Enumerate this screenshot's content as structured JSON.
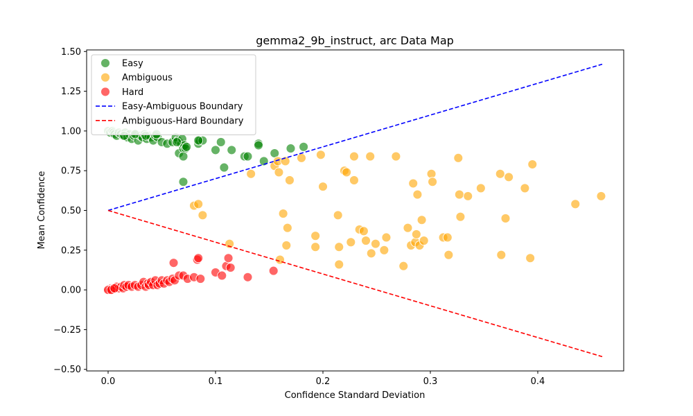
{
  "chart_data": {
    "type": "scatter",
    "title": "gemma2_9b_instruct, arc Data Map",
    "xlabel": "Confidence Standard Deviation",
    "ylabel": "Mean Confidence",
    "xlim": [
      -0.02,
      0.48
    ],
    "ylim": [
      -0.51,
      1.51
    ],
    "xticks": [
      0.0,
      0.1,
      0.2,
      0.3,
      0.4
    ],
    "xtick_labels": [
      "0.0",
      "0.1",
      "0.2",
      "0.3",
      "0.4"
    ],
    "yticks": [
      -0.5,
      -0.25,
      0.0,
      0.25,
      0.5,
      0.75,
      1.0,
      1.25,
      1.5
    ],
    "ytick_labels": [
      "−0.50",
      "−0.25",
      "0.00",
      "0.25",
      "0.50",
      "0.75",
      "1.00",
      "1.25",
      "1.50"
    ],
    "grid": false,
    "legend_position": "top-left",
    "legend": [
      {
        "label": "Easy",
        "kind": "marker",
        "color": "#008000"
      },
      {
        "label": "Ambiguous",
        "kind": "marker",
        "color": "#FFA500"
      },
      {
        "label": "Hard",
        "kind": "marker",
        "color": "#FF0000"
      },
      {
        "label": "Easy-Ambiguous Boundary",
        "kind": "line",
        "color": "#0000FF"
      },
      {
        "label": "Ambiguous-Hard Boundary",
        "kind": "line",
        "color": "#FF0000"
      }
    ],
    "series": [
      {
        "name": "Easy",
        "color": "#008000",
        "points": [
          [
            0.0,
            1.0
          ],
          [
            0.002,
            0.99
          ],
          [
            0.004,
            1.0
          ],
          [
            0.005,
            0.99
          ],
          [
            0.006,
            0.98
          ],
          [
            0.008,
            0.97
          ],
          [
            0.01,
            0.99
          ],
          [
            0.012,
            0.98
          ],
          [
            0.014,
            0.97
          ],
          [
            0.016,
            0.99
          ],
          [
            0.018,
            0.96
          ],
          [
            0.02,
            0.98
          ],
          [
            0.022,
            0.95
          ],
          [
            0.024,
            0.97
          ],
          [
            0.026,
            0.98
          ],
          [
            0.028,
            0.94
          ],
          [
            0.03,
            0.97
          ],
          [
            0.032,
            0.96
          ],
          [
            0.034,
            0.98
          ],
          [
            0.036,
            0.95
          ],
          [
            0.038,
            0.97
          ],
          [
            0.04,
            0.96
          ],
          [
            0.042,
            0.94
          ],
          [
            0.044,
            0.97
          ],
          [
            0.046,
            0.96
          ],
          [
            0.05,
            0.93
          ],
          [
            0.055,
            0.92
          ],
          [
            0.06,
            0.93
          ],
          [
            0.063,
            0.96
          ],
          [
            0.065,
            0.94
          ],
          [
            0.066,
            0.86
          ],
          [
            0.068,
            0.92
          ],
          [
            0.069,
            0.95
          ],
          [
            0.07,
            0.89
          ],
          [
            0.071,
            0.91
          ],
          [
            0.072,
            0.89
          ],
          [
            0.073,
            0.9
          ],
          [
            0.07,
            0.84
          ],
          [
            0.07,
            0.68
          ],
          [
            0.084,
            0.92
          ],
          [
            0.085,
            0.94
          ],
          [
            0.088,
            0.94
          ],
          [
            0.1,
            0.88
          ],
          [
            0.105,
            0.93
          ],
          [
            0.108,
            0.77
          ],
          [
            0.115,
            0.88
          ],
          [
            0.127,
            0.84
          ],
          [
            0.13,
            0.84
          ],
          [
            0.14,
            0.92
          ],
          [
            0.14,
            0.91
          ],
          [
            0.145,
            0.81
          ],
          [
            0.155,
            0.86
          ],
          [
            0.17,
            0.89
          ],
          [
            0.182,
            0.9
          ],
          [
            0.015,
            0.97
          ],
          [
            0.025,
            0.98
          ],
          [
            0.035,
            0.97
          ],
          [
            0.045,
            0.98
          ],
          [
            0.064,
            0.93
          ],
          [
            0.084,
            0.94
          ]
        ]
      },
      {
        "name": "Ambiguous",
        "color": "#FFA500",
        "points": [
          [
            0.08,
            0.53
          ],
          [
            0.084,
            0.54
          ],
          [
            0.088,
            0.47
          ],
          [
            0.113,
            0.29
          ],
          [
            0.133,
            0.73
          ],
          [
            0.155,
            0.78
          ],
          [
            0.158,
            0.81
          ],
          [
            0.159,
            0.74
          ],
          [
            0.16,
            0.19
          ],
          [
            0.163,
            0.48
          ],
          [
            0.165,
            0.81
          ],
          [
            0.166,
            0.28
          ],
          [
            0.167,
            0.39
          ],
          [
            0.169,
            0.69
          ],
          [
            0.18,
            0.83
          ],
          [
            0.193,
            0.34
          ],
          [
            0.193,
            0.27
          ],
          [
            0.198,
            0.85
          ],
          [
            0.2,
            0.65
          ],
          [
            0.214,
            0.47
          ],
          [
            0.215,
            0.27
          ],
          [
            0.215,
            0.16
          ],
          [
            0.22,
            0.75
          ],
          [
            0.222,
            0.74
          ],
          [
            0.226,
            0.3
          ],
          [
            0.229,
            0.84
          ],
          [
            0.229,
            0.69
          ],
          [
            0.234,
            0.38
          ],
          [
            0.238,
            0.37
          ],
          [
            0.24,
            0.31
          ],
          [
            0.244,
            0.84
          ],
          [
            0.245,
            0.23
          ],
          [
            0.249,
            0.29
          ],
          [
            0.257,
            0.25
          ],
          [
            0.259,
            0.33
          ],
          [
            0.268,
            0.84
          ],
          [
            0.275,
            0.15
          ],
          [
            0.279,
            0.39
          ],
          [
            0.282,
            0.28
          ],
          [
            0.284,
            0.67
          ],
          [
            0.286,
            0.3
          ],
          [
            0.287,
            0.35
          ],
          [
            0.288,
            0.6
          ],
          [
            0.29,
            0.28
          ],
          [
            0.292,
            0.44
          ],
          [
            0.294,
            0.31
          ],
          [
            0.301,
            0.73
          ],
          [
            0.302,
            0.68
          ],
          [
            0.312,
            0.33
          ],
          [
            0.316,
            0.33
          ],
          [
            0.317,
            0.22
          ],
          [
            0.326,
            0.83
          ],
          [
            0.327,
            0.6
          ],
          [
            0.328,
            0.46
          ],
          [
            0.335,
            0.59
          ],
          [
            0.347,
            0.64
          ],
          [
            0.365,
            0.73
          ],
          [
            0.366,
            0.22
          ],
          [
            0.37,
            0.45
          ],
          [
            0.373,
            0.71
          ],
          [
            0.388,
            0.64
          ],
          [
            0.393,
            0.2
          ],
          [
            0.395,
            0.79
          ],
          [
            0.435,
            0.54
          ],
          [
            0.459,
            0.59
          ]
        ]
      },
      {
        "name": "Hard",
        "color": "#FF0000",
        "points": [
          [
            0.0,
            0.0
          ],
          [
            0.001,
            0.0
          ],
          [
            0.002,
            0.0
          ],
          [
            0.003,
            0.01
          ],
          [
            0.005,
            0.01
          ],
          [
            0.007,
            0.01
          ],
          [
            0.008,
            0.02
          ],
          [
            0.01,
            0.01
          ],
          [
            0.012,
            0.02
          ],
          [
            0.014,
            0.01
          ],
          [
            0.015,
            0.03
          ],
          [
            0.017,
            0.02
          ],
          [
            0.019,
            0.03
          ],
          [
            0.022,
            0.02
          ],
          [
            0.025,
            0.03
          ],
          [
            0.028,
            0.02
          ],
          [
            0.031,
            0.03
          ],
          [
            0.033,
            0.05
          ],
          [
            0.035,
            0.02
          ],
          [
            0.037,
            0.04
          ],
          [
            0.038,
            0.03
          ],
          [
            0.04,
            0.05
          ],
          [
            0.042,
            0.03
          ],
          [
            0.044,
            0.06
          ],
          [
            0.046,
            0.03
          ],
          [
            0.048,
            0.04
          ],
          [
            0.05,
            0.06
          ],
          [
            0.052,
            0.04
          ],
          [
            0.055,
            0.06
          ],
          [
            0.057,
            0.05
          ],
          [
            0.06,
            0.07
          ],
          [
            0.062,
            0.06
          ],
          [
            0.061,
            0.17
          ],
          [
            0.066,
            0.09
          ],
          [
            0.07,
            0.09
          ],
          [
            0.074,
            0.07
          ],
          [
            0.08,
            0.08
          ],
          [
            0.083,
            0.19
          ],
          [
            0.084,
            0.2
          ],
          [
            0.086,
            0.07
          ],
          [
            0.1,
            0.11
          ],
          [
            0.106,
            0.09
          ],
          [
            0.11,
            0.15
          ],
          [
            0.112,
            0.2
          ],
          [
            0.114,
            0.14
          ],
          [
            0.13,
            0.08
          ],
          [
            0.154,
            0.12
          ],
          [
            0.0,
            0.0
          ],
          [
            0.003,
            0.0
          ],
          [
            0.006,
            0.01
          ]
        ]
      }
    ],
    "boundaries": [
      {
        "name": "Easy-Ambiguous Boundary",
        "color": "#0000FF",
        "x": [
          0.0,
          0.46
        ],
        "y": [
          0.5,
          1.42
        ]
      },
      {
        "name": "Ambiguous-Hard Boundary",
        "color": "#FF0000",
        "x": [
          0.0,
          0.46
        ],
        "y": [
          0.5,
          -0.42
        ]
      }
    ]
  }
}
